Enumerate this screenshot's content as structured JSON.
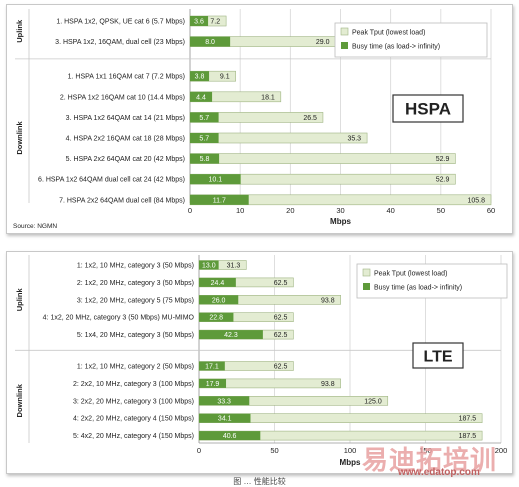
{
  "caption": "图 … 性能比较",
  "watermark": {
    "main": "易迪拓培训",
    "url": "www.edatop.com"
  },
  "chart_data": [
    {
      "type": "bar",
      "stacking": "overlay-horizontal",
      "tag": "HSPA",
      "source": "Source: NGMN",
      "xlabel": "Mbps",
      "xlim": [
        0,
        60
      ],
      "xticks": [
        0,
        10,
        20,
        30,
        40,
        50,
        60
      ],
      "grid": true,
      "legend_position": "top-right",
      "colors": {
        "peak": "#e3ecd2",
        "busy": "#5e9a3a"
      },
      "series": [
        {
          "key": "peak",
          "name": "Peak Tput (lowest load)"
        },
        {
          "key": "busy",
          "name": "Busy time (as load-> infinity)"
        }
      ],
      "groups": [
        {
          "name": "Uplink",
          "rows": [
            {
              "label": "1. HSPA 1x2, QPSK, UE cat 6 (5.7 Mbps)",
              "busy": 3.6,
              "peak": 7.2
            },
            {
              "label": "3. HSPA 1x2, 16QAM, dual cell (23 Mbps)",
              "busy": 8.0,
              "peak": 29.0
            }
          ]
        },
        {
          "name": "Downlink",
          "rows": [
            {
              "label": "1. HSPA 1x1 16QAM cat 7 (7.2 Mbps)",
              "busy": 3.8,
              "peak": 9.1
            },
            {
              "label": "2. HSPA 1x2 16QAM cat 10 (14.4 Mbps)",
              "busy": 4.4,
              "peak": 18.1
            },
            {
              "label": "3. HSPA 1x2 64QAM cat 14 (21 Mbps)",
              "busy": 5.7,
              "peak": 26.5
            },
            {
              "label": "4. HSPA 2x2 16QAM cat 18 (28 Mbps)",
              "busy": 5.7,
              "peak": 35.3
            },
            {
              "label": "5. HSPA 2x2 64QAM cat 20 (42 Mbps)",
              "busy": 5.8,
              "peak": 52.9
            },
            {
              "label": "6. HSPA 1x2 64QAM dual cell cat 24 (42 Mbps)",
              "busy": 10.1,
              "peak": 52.9
            },
            {
              "label": "7. HSPA 2x2 64QAM dual cell (84 Mbps)",
              "busy": 11.7,
              "peak": 105.8
            }
          ]
        }
      ]
    },
    {
      "type": "bar",
      "stacking": "overlay-horizontal",
      "tag": "LTE",
      "source": "",
      "xlabel": "Mbps",
      "xlim": [
        0,
        200
      ],
      "xticks": [
        0,
        50,
        100,
        150,
        200
      ],
      "grid": true,
      "legend_position": "top-right",
      "colors": {
        "peak": "#e3ecd2",
        "busy": "#5e9a3a"
      },
      "series": [
        {
          "key": "peak",
          "name": "Peak Tput (lowest load)"
        },
        {
          "key": "busy",
          "name": "Busy time (as load-> infinity)"
        }
      ],
      "groups": [
        {
          "name": "Uplink",
          "rows": [
            {
              "label": "1: 1x2, 10 MHz, category 3 (50 Mbps)",
              "busy": 13.0,
              "peak": 31.3
            },
            {
              "label": "2: 1x2, 20 MHz, category 3 (50 Mbps)",
              "busy": 24.4,
              "peak": 62.5
            },
            {
              "label": "3: 1x2, 20 MHz, category 5 (75 Mbps)",
              "busy": 26.0,
              "peak": 93.8
            },
            {
              "label": "4: 1x2, 20 MHz, category 3 (50 Mbps) MU-MIMO",
              "busy": 22.8,
              "peak": 62.5
            },
            {
              "label": "5: 1x4, 20 MHz, category 3 (50 Mbps)",
              "busy": 42.3,
              "peak": 62.5
            }
          ]
        },
        {
          "name": "Downlink",
          "rows": [
            {
              "label": "1: 1x2, 10 MHz, category 2 (50 Mbps)",
              "busy": 17.1,
              "peak": 62.5
            },
            {
              "label": "2: 2x2, 10 MHz, category 3 (100 Mbps)",
              "busy": 17.9,
              "peak": 93.8
            },
            {
              "label": "3: 2x2, 20 MHz, category 3 (100 Mbps)",
              "busy": 33.3,
              "peak": 125.0
            },
            {
              "label": "4: 2x2, 20 MHz, category 4 (150 Mbps)",
              "busy": 34.1,
              "peak": 187.5
            },
            {
              "label": "5: 4x2, 20 MHz, category 4 (150 Mbps)",
              "busy": 40.6,
              "peak": 187.5
            }
          ]
        }
      ]
    }
  ]
}
